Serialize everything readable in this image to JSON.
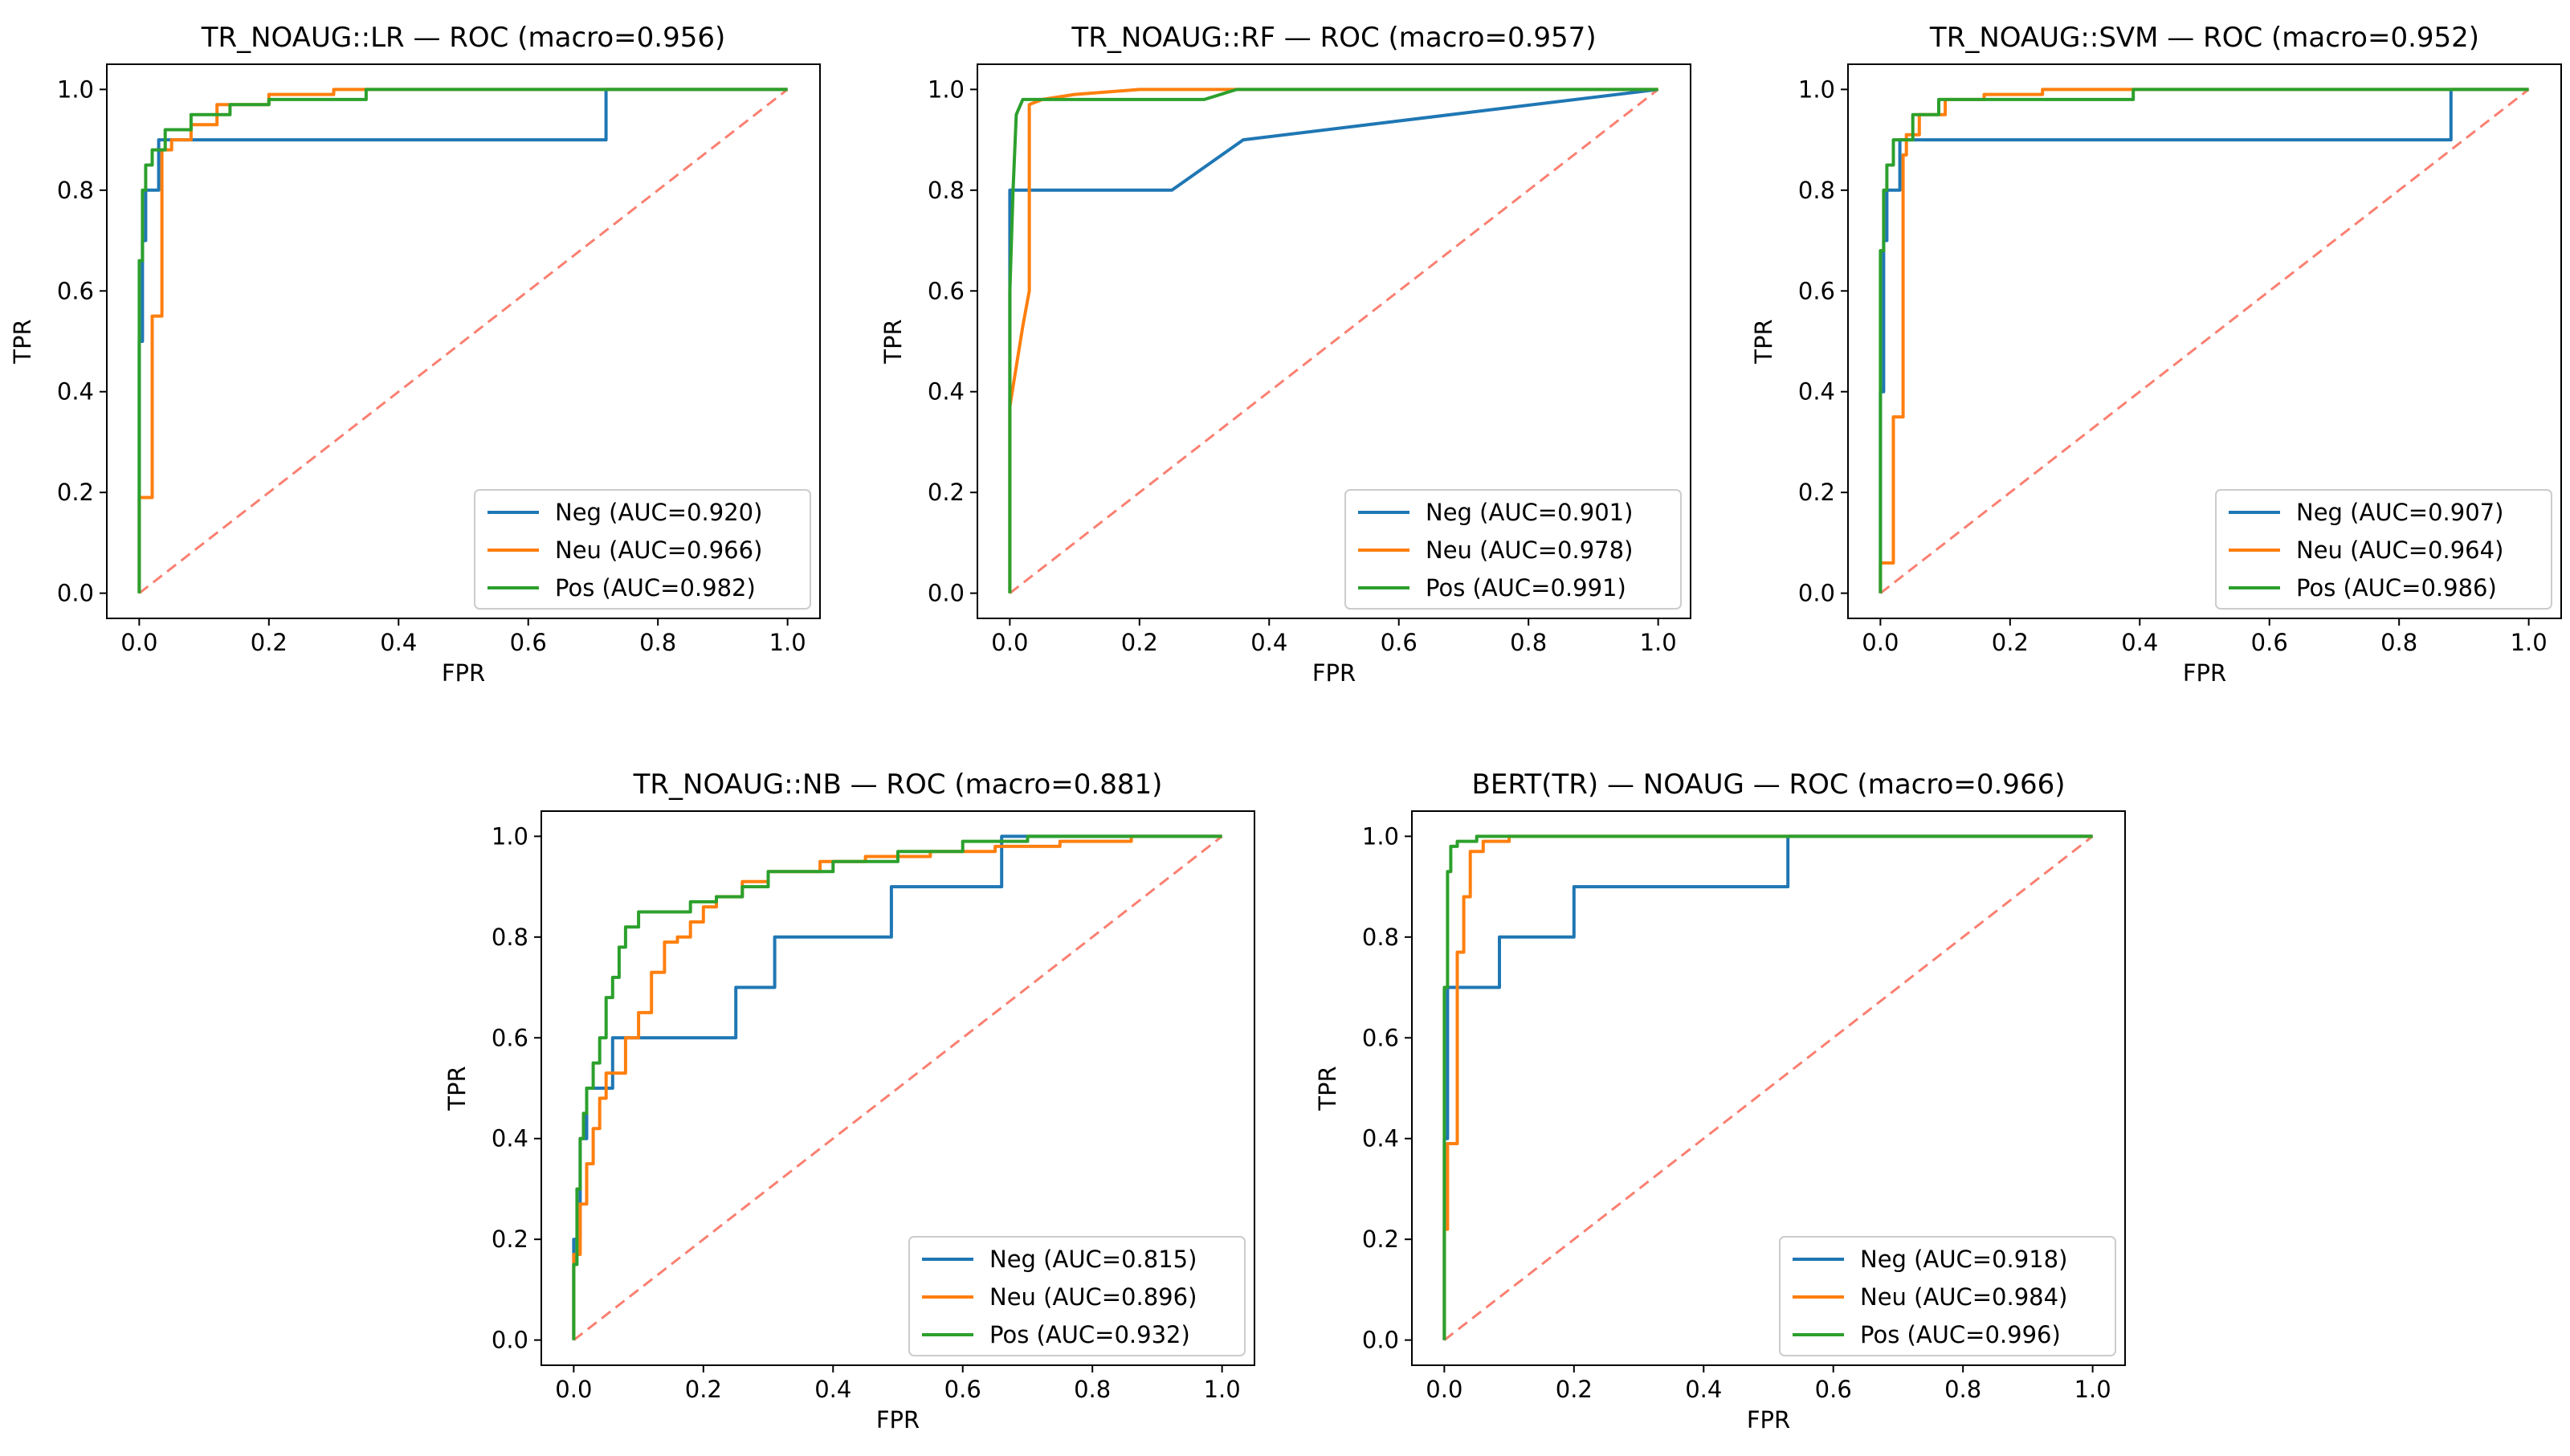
{
  "colors": {
    "neg": "#1f77b4",
    "neu": "#ff7f0e",
    "pos": "#2ca02c",
    "chance": "#fa8072"
  },
  "chart_data": [
    {
      "type": "line",
      "title": "TR_NOAUG::LR — ROC (macro=0.956)",
      "xlabel": "FPR",
      "ylabel": "TPR",
      "xlim": [
        0,
        1
      ],
      "ylim": [
        0,
        1
      ],
      "xticks": [
        "0.0",
        "0.2",
        "0.4",
        "0.6",
        "0.8",
        "1.0"
      ],
      "yticks": [
        "0.0",
        "0.2",
        "0.4",
        "0.6",
        "0.8",
        "1.0"
      ],
      "legend_position": "lower-right",
      "series": [
        {
          "name": "Neg (AUC=0.920)",
          "color_key": "neg",
          "x": [
            0,
            0,
            0.005,
            0.005,
            0.01,
            0.01,
            0.03,
            0.03,
            0.72,
            0.72,
            1
          ],
          "y": [
            0,
            0.5,
            0.5,
            0.7,
            0.7,
            0.8,
            0.8,
            0.9,
            0.9,
            1,
            1
          ]
        },
        {
          "name": "Neu (AUC=0.966)",
          "color_key": "neu",
          "x": [
            0,
            0,
            0.02,
            0.02,
            0.035,
            0.035,
            0.05,
            0.05,
            0.08,
            0.08,
            0.12,
            0.12,
            0.2,
            0.2,
            0.3,
            0.3,
            0.44,
            1
          ],
          "y": [
            0,
            0.19,
            0.19,
            0.55,
            0.55,
            0.88,
            0.88,
            0.9,
            0.9,
            0.93,
            0.93,
            0.97,
            0.97,
            0.99,
            0.99,
            1,
            1,
            1
          ]
        },
        {
          "name": "Pos (AUC=0.982)",
          "color_key": "pos",
          "x": [
            0,
            0,
            0.005,
            0.005,
            0.01,
            0.01,
            0.02,
            0.02,
            0.04,
            0.04,
            0.08,
            0.08,
            0.14,
            0.14,
            0.2,
            0.2,
            0.35,
            0.35,
            1
          ],
          "y": [
            0,
            0.66,
            0.66,
            0.8,
            0.8,
            0.85,
            0.85,
            0.88,
            0.88,
            0.92,
            0.92,
            0.95,
            0.95,
            0.97,
            0.97,
            0.98,
            0.98,
            1,
            1
          ]
        }
      ]
    },
    {
      "type": "line",
      "title": "TR_NOAUG::RF — ROC (macro=0.957)",
      "xlabel": "FPR",
      "ylabel": "TPR",
      "xlim": [
        0,
        1
      ],
      "ylim": [
        0,
        1
      ],
      "xticks": [
        "0.0",
        "0.2",
        "0.4",
        "0.6",
        "0.8",
        "1.0"
      ],
      "yticks": [
        "0.0",
        "0.2",
        "0.4",
        "0.6",
        "0.8",
        "1.0"
      ],
      "legend_position": "lower-right",
      "series": [
        {
          "name": "Neg (AUC=0.901)",
          "color_key": "neg",
          "x": [
            0,
            0,
            0.25,
            0.36,
            1
          ],
          "y": [
            0,
            0.8,
            0.8,
            0.9,
            1
          ]
        },
        {
          "name": "Neu (AUC=0.978)",
          "color_key": "neu",
          "x": [
            0,
            0,
            0.01,
            0.02,
            0.03,
            0.03,
            0.05,
            0.1,
            0.2,
            0.4,
            1
          ],
          "y": [
            0,
            0.37,
            0.45,
            0.53,
            0.6,
            0.97,
            0.98,
            0.99,
            1,
            1,
            1
          ]
        },
        {
          "name": "Pos (AUC=0.991)",
          "color_key": "pos",
          "x": [
            0,
            0,
            0.005,
            0.01,
            0.02,
            0.3,
            0.35,
            1
          ],
          "y": [
            0,
            0.6,
            0.8,
            0.95,
            0.98,
            0.98,
            1,
            1
          ]
        }
      ]
    },
    {
      "type": "line",
      "title": "TR_NOAUG::SVM — ROC (macro=0.952)",
      "xlabel": "FPR",
      "ylabel": "TPR",
      "xlim": [
        0,
        1
      ],
      "ylim": [
        0,
        1
      ],
      "xticks": [
        "0.0",
        "0.2",
        "0.4",
        "0.6",
        "0.8",
        "1.0"
      ],
      "yticks": [
        "0.0",
        "0.2",
        "0.4",
        "0.6",
        "0.8",
        "1.0"
      ],
      "legend_position": "lower-right",
      "series": [
        {
          "name": "Neg (AUC=0.907)",
          "color_key": "neg",
          "x": [
            0,
            0,
            0.005,
            0.005,
            0.01,
            0.01,
            0.03,
            0.03,
            0.88,
            0.88,
            1
          ],
          "y": [
            0,
            0.4,
            0.4,
            0.7,
            0.7,
            0.8,
            0.8,
            0.9,
            0.9,
            1,
            1
          ]
        },
        {
          "name": "Neu (AUC=0.964)",
          "color_key": "neu",
          "x": [
            0,
            0,
            0.02,
            0.02,
            0.035,
            0.035,
            0.04,
            0.04,
            0.06,
            0.06,
            0.1,
            0.1,
            0.16,
            0.16,
            0.25,
            0.25,
            1
          ],
          "y": [
            0,
            0.06,
            0.06,
            0.35,
            0.35,
            0.87,
            0.87,
            0.91,
            0.91,
            0.95,
            0.95,
            0.98,
            0.98,
            0.99,
            0.99,
            1,
            1
          ]
        },
        {
          "name": "Pos (AUC=0.986)",
          "color_key": "pos",
          "x": [
            0,
            0,
            0.005,
            0.005,
            0.01,
            0.01,
            0.02,
            0.02,
            0.05,
            0.05,
            0.09,
            0.09,
            0.39,
            0.39,
            1
          ],
          "y": [
            0,
            0.68,
            0.68,
            0.8,
            0.8,
            0.85,
            0.85,
            0.9,
            0.9,
            0.95,
            0.95,
            0.98,
            0.98,
            1,
            1
          ]
        }
      ]
    },
    {
      "type": "line",
      "title": "TR_NOAUG::NB — ROC (macro=0.881)",
      "xlabel": "FPR",
      "ylabel": "TPR",
      "xlim": [
        0,
        1
      ],
      "ylim": [
        0,
        1
      ],
      "xticks": [
        "0.0",
        "0.2",
        "0.4",
        "0.6",
        "0.8",
        "1.0"
      ],
      "yticks": [
        "0.0",
        "0.2",
        "0.4",
        "0.6",
        "0.8",
        "1.0"
      ],
      "legend_position": "lower-right",
      "series": [
        {
          "name": "Neg (AUC=0.815)",
          "color_key": "neg",
          "x": [
            0,
            0,
            0.01,
            0.01,
            0.02,
            0.02,
            0.03,
            0.03,
            0.06,
            0.06,
            0.08,
            0.08,
            0.25,
            0.25,
            0.31,
            0.31,
            0.49,
            0.49,
            0.66,
            0.66,
            1
          ],
          "y": [
            0,
            0.2,
            0.2,
            0.4,
            0.4,
            0.5,
            0.5,
            0.5,
            0.5,
            0.6,
            0.6,
            0.6,
            0.6,
            0.7,
            0.7,
            0.8,
            0.8,
            0.9,
            0.9,
            1,
            1
          ]
        },
        {
          "name": "Neu (AUC=0.896)",
          "color_key": "neu",
          "x": [
            0,
            0,
            0.01,
            0.01,
            0.02,
            0.02,
            0.03,
            0.03,
            0.04,
            0.04,
            0.05,
            0.05,
            0.08,
            0.08,
            0.1,
            0.1,
            0.12,
            0.12,
            0.14,
            0.14,
            0.16,
            0.16,
            0.18,
            0.18,
            0.2,
            0.2,
            0.22,
            0.22,
            0.26,
            0.26,
            0.3,
            0.3,
            0.38,
            0.38,
            0.45,
            0.45,
            0.55,
            0.55,
            0.65,
            0.65,
            0.75,
            0.75,
            0.86,
            0.86,
            1
          ],
          "y": [
            0,
            0.17,
            0.17,
            0.27,
            0.27,
            0.35,
            0.35,
            0.42,
            0.42,
            0.48,
            0.48,
            0.53,
            0.53,
            0.6,
            0.6,
            0.65,
            0.65,
            0.73,
            0.73,
            0.79,
            0.79,
            0.8,
            0.8,
            0.83,
            0.83,
            0.86,
            0.86,
            0.88,
            0.88,
            0.91,
            0.91,
            0.93,
            0.93,
            0.95,
            0.95,
            0.96,
            0.96,
            0.97,
            0.97,
            0.98,
            0.98,
            0.99,
            0.99,
            1,
            1
          ]
        },
        {
          "name": "Pos (AUC=0.932)",
          "color_key": "pos",
          "x": [
            0,
            0,
            0.005,
            0.005,
            0.01,
            0.01,
            0.015,
            0.015,
            0.02,
            0.02,
            0.03,
            0.03,
            0.04,
            0.04,
            0.05,
            0.05,
            0.06,
            0.06,
            0.07,
            0.07,
            0.08,
            0.08,
            0.1,
            0.1,
            0.18,
            0.18,
            0.22,
            0.22,
            0.26,
            0.26,
            0.3,
            0.3,
            0.4,
            0.4,
            0.5,
            0.5,
            0.6,
            0.6,
            0.7,
            0.7,
            1
          ],
          "y": [
            0,
            0.15,
            0.15,
            0.3,
            0.3,
            0.4,
            0.4,
            0.45,
            0.45,
            0.5,
            0.5,
            0.55,
            0.55,
            0.6,
            0.6,
            0.68,
            0.68,
            0.72,
            0.72,
            0.78,
            0.78,
            0.82,
            0.82,
            0.85,
            0.85,
            0.87,
            0.87,
            0.88,
            0.88,
            0.9,
            0.9,
            0.93,
            0.93,
            0.95,
            0.95,
            0.97,
            0.97,
            0.99,
            0.99,
            1,
            1
          ]
        }
      ]
    },
    {
      "type": "line",
      "title": "BERT(TR) — NOAUG — ROC (macro=0.966)",
      "xlabel": "FPR",
      "ylabel": "TPR",
      "xlim": [
        0,
        1
      ],
      "ylim": [
        0,
        1
      ],
      "xticks": [
        "0.0",
        "0.2",
        "0.4",
        "0.6",
        "0.8",
        "1.0"
      ],
      "yticks": [
        "0.0",
        "0.2",
        "0.4",
        "0.6",
        "0.8",
        "1.0"
      ],
      "legend_position": "lower-right",
      "series": [
        {
          "name": "Neg (AUC=0.918)",
          "color_key": "neg",
          "x": [
            0,
            0,
            0.005,
            0.005,
            0.085,
            0.085,
            0.2,
            0.2,
            0.53,
            0.53,
            1
          ],
          "y": [
            0,
            0.4,
            0.4,
            0.7,
            0.7,
            0.8,
            0.8,
            0.9,
            0.9,
            1,
            1
          ]
        },
        {
          "name": "Neu (AUC=0.984)",
          "color_key": "neu",
          "x": [
            0,
            0,
            0.005,
            0.005,
            0.01,
            0.01,
            0.02,
            0.02,
            0.03,
            0.03,
            0.04,
            0.04,
            0.06,
            0.06,
            0.1,
            0.1,
            0.47,
            0.47,
            1
          ],
          "y": [
            0,
            0.22,
            0.22,
            0.39,
            0.39,
            0.39,
            0.39,
            0.77,
            0.77,
            0.88,
            0.88,
            0.97,
            0.97,
            0.99,
            0.99,
            1,
            1,
            1,
            1
          ]
        },
        {
          "name": "Pos (AUC=0.996)",
          "color_key": "pos",
          "x": [
            0,
            0,
            0.005,
            0.005,
            0.01,
            0.01,
            0.02,
            0.02,
            0.05,
            0.05,
            1
          ],
          "y": [
            0,
            0.7,
            0.7,
            0.93,
            0.93,
            0.98,
            0.98,
            0.99,
            0.99,
            1,
            1
          ]
        }
      ]
    }
  ]
}
